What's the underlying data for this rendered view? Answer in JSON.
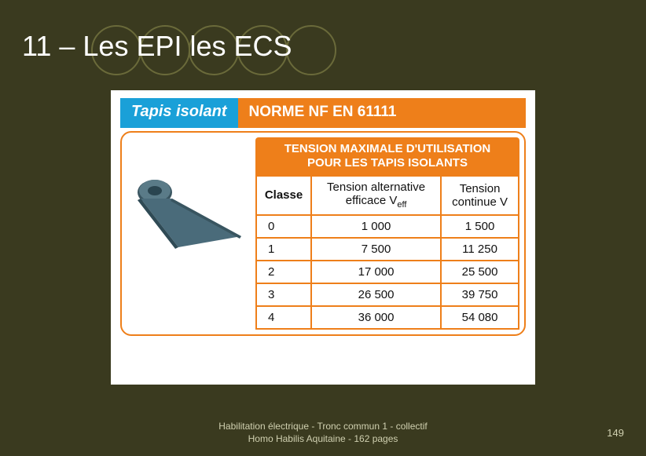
{
  "slide": {
    "title": "11 – Les EPI les ECS",
    "background": "#3a3a1f",
    "circle_border": "#6a6a3a",
    "circle_count": 5
  },
  "card": {
    "header_left": "Tapis isolant",
    "header_right": "NORME NF EN 61111",
    "header_left_bg": "#1aa0d8",
    "header_right_bg": "#ee7f1a",
    "border_color": "#ee7f1a",
    "sub_header_line1": "TENSION MAXIMALE D'UTILISATION",
    "sub_header_line2": "POUR LES TAPIS ISOLANTS",
    "mat_color": "#4a6b7a"
  },
  "table": {
    "columns": {
      "classe": "Classe",
      "valt_pre": "Tension alternative",
      "valt_line2a": "efficace V",
      "valt_sub": "eff",
      "vcont_pre": "Tension",
      "vcont_line2": "continue V"
    },
    "rows": [
      {
        "classe": "0",
        "valt": "1 000",
        "vcont": "1 500"
      },
      {
        "classe": "1",
        "valt": "7 500",
        "vcont": "11 250"
      },
      {
        "classe": "2",
        "valt": "17 000",
        "vcont": "25 500"
      },
      {
        "classe": "3",
        "valt": "26 500",
        "vcont": "39 750"
      },
      {
        "classe": "4",
        "valt": "36 000",
        "vcont": "54 080"
      }
    ]
  },
  "footer": {
    "line1": "Habilitation électrique - Tronc commun 1  - collectif",
    "line2": "Homo Habilis Aquitaine - 162 pages",
    "page": "149"
  }
}
